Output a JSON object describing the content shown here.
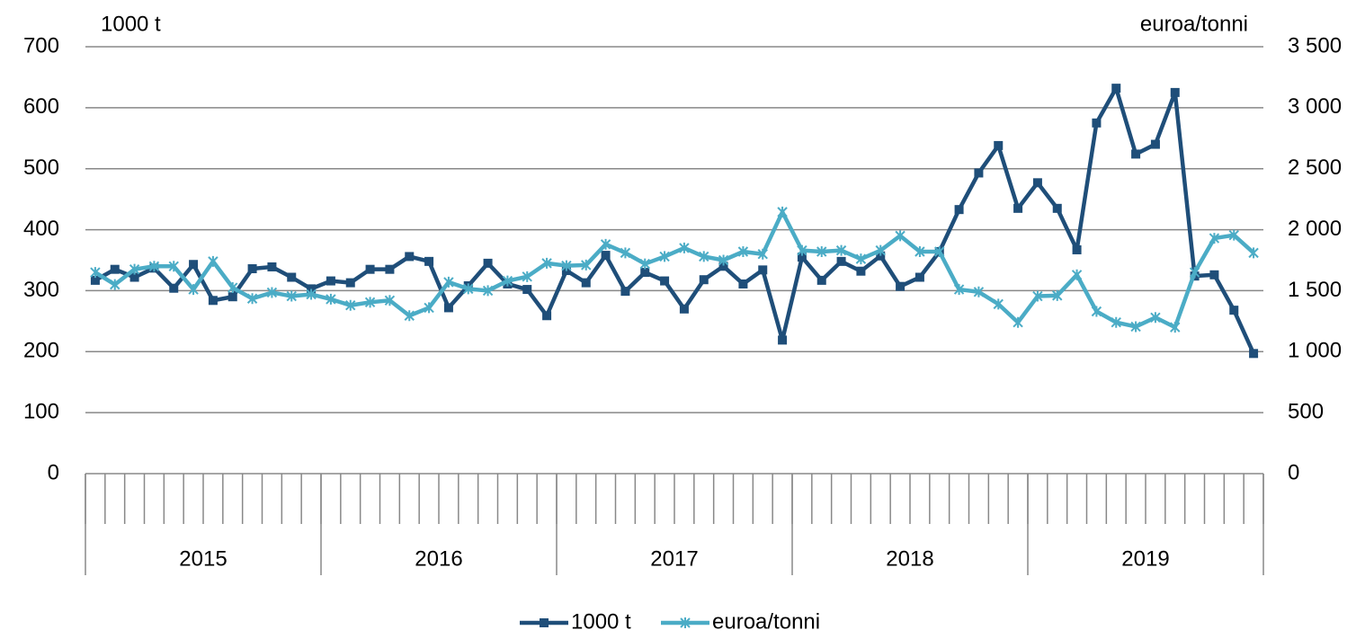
{
  "chart_data": {
    "type": "line",
    "y_label": "1000 t",
    "y2_label": "euroa/tonni",
    "categories": [
      null,
      null,
      null,
      null,
      null,
      null,
      null,
      null,
      null,
      null,
      null,
      null,
      null,
      null,
      null,
      null,
      null,
      null,
      null,
      null,
      null,
      null,
      null,
      null,
      null,
      null,
      null,
      null,
      null,
      null,
      null,
      null,
      null,
      null,
      null,
      null,
      null,
      null,
      null,
      null,
      null,
      null,
      null,
      null,
      null,
      null,
      null,
      null,
      null,
      null,
      null,
      null,
      null,
      null,
      null,
      null,
      null,
      null,
      null,
      null
    ],
    "year_groups": [
      "2015",
      "2016",
      "2017",
      "2018",
      "2019"
    ],
    "series": [
      {
        "name": "1000 t",
        "color": "#1f4e79",
        "marker": "square",
        "values": [
          317,
          335,
          322,
          337,
          304,
          343,
          284,
          290,
          336,
          339,
          322,
          303,
          316,
          313,
          335,
          335,
          356,
          348,
          272,
          308,
          345,
          311,
          302,
          259,
          333,
          313,
          358,
          299,
          330,
          316,
          270,
          318,
          340,
          311,
          334,
          219,
          355,
          317,
          348,
          332,
          357,
          307,
          322,
          364,
          433,
          493,
          538,
          435,
          477,
          435,
          367,
          575,
          632,
          524,
          540,
          625,
          324,
          326,
          268,
          197
        ]
      },
      {
        "name": "euroa/tonni",
        "color": "#4bacc6",
        "marker": "star",
        "axis": "y2",
        "values": [
          1650,
          1550,
          1675,
          1700,
          1700,
          1510,
          1740,
          1525,
          1435,
          1485,
          1455,
          1470,
          1430,
          1380,
          1405,
          1420,
          1295,
          1360,
          1570,
          1515,
          1500,
          1580,
          1615,
          1725,
          1705,
          1710,
          1880,
          1810,
          1720,
          1780,
          1850,
          1780,
          1750,
          1820,
          1800,
          2145,
          1830,
          1820,
          1830,
          1760,
          1830,
          1950,
          1820,
          1820,
          1510,
          1490,
          1390,
          1240,
          1455,
          1460,
          1630,
          1330,
          1240,
          1205,
          1280,
          1200,
          1650,
          1930,
          1955,
          1810
        ]
      }
    ],
    "ylim": [
      0,
      700
    ],
    "yticks": [
      0,
      100,
      200,
      300,
      400,
      500,
      600,
      700
    ],
    "y2lim": [
      0,
      3500
    ],
    "y2ticks": [
      0,
      500,
      {
        "value": 1000,
        "label": "1 000"
      },
      {
        "value": 1500,
        "label": "1 500"
      },
      {
        "value": 2000,
        "label": "2 000"
      },
      {
        "value": 2500,
        "label": "2 500"
      },
      {
        "value": 3000,
        "label": "3 000"
      },
      {
        "value": 3500,
        "label": "3 500"
      }
    ],
    "grid": true,
    "legend": "bottom"
  }
}
